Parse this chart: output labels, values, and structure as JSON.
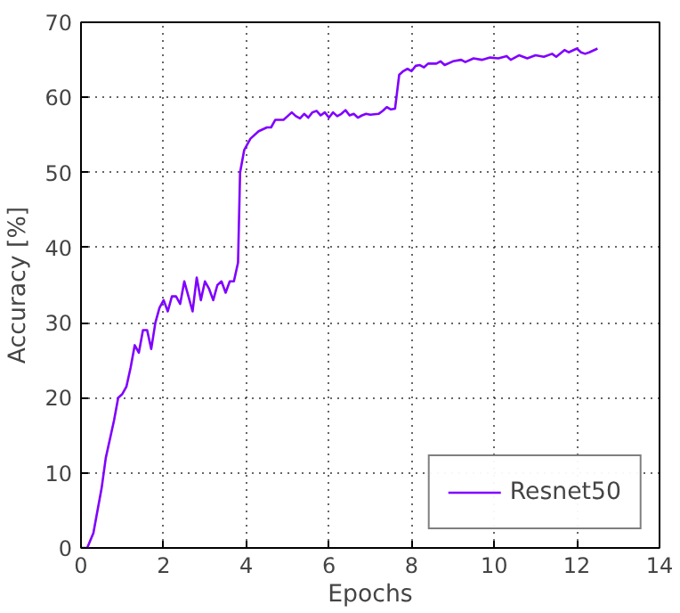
{
  "chart_data": {
    "type": "line",
    "xlabel": "Epochs",
    "ylabel": "Accuracy [%]",
    "xlim": [
      0,
      14
    ],
    "ylim": [
      0,
      70
    ],
    "xticks": [
      0,
      2,
      4,
      6,
      8,
      10,
      12,
      14
    ],
    "yticks": [
      0,
      10,
      20,
      30,
      40,
      50,
      60,
      70
    ],
    "grid": true,
    "legend": "bottom right",
    "line_style": "solid",
    "series": [
      {
        "name": "Resnet50",
        "color": "#8000ff",
        "x": [
          0,
          0.15,
          0.3,
          0.5,
          0.6,
          0.8,
          0.9,
          1.0,
          1.1,
          1.2,
          1.3,
          1.4,
          1.5,
          1.6,
          1.7,
          1.8,
          1.9,
          2.0,
          2.1,
          2.2,
          2.3,
          2.4,
          2.5,
          2.6,
          2.7,
          2.8,
          2.9,
          3.0,
          3.1,
          3.2,
          3.3,
          3.4,
          3.5,
          3.6,
          3.7,
          3.8,
          3.85,
          3.95,
          4.1,
          4.3,
          4.5,
          4.6,
          4.7,
          4.9,
          5.0,
          5.1,
          5.2,
          5.3,
          5.4,
          5.5,
          5.6,
          5.7,
          5.8,
          5.9,
          6.0,
          6.1,
          6.2,
          6.3,
          6.4,
          6.5,
          6.6,
          6.7,
          6.8,
          6.9,
          7.0,
          7.2,
          7.3,
          7.4,
          7.5,
          7.6,
          7.7,
          7.8,
          7.9,
          8.0,
          8.1,
          8.2,
          8.3,
          8.4,
          8.6,
          8.7,
          8.8,
          9.0,
          9.2,
          9.3,
          9.5,
          9.7,
          9.9,
          10.1,
          10.3,
          10.4,
          10.6,
          10.8,
          11.0,
          11.2,
          11.4,
          11.5,
          11.7,
          11.8,
          12.0,
          12.1,
          12.2,
          12.3,
          12.5
        ],
        "values": [
          0,
          0,
          2,
          8,
          12,
          17,
          20,
          20.5,
          21.5,
          24,
          27,
          26,
          29,
          29,
          26.5,
          30,
          32,
          33,
          31.5,
          33.5,
          33.5,
          32.5,
          35.5,
          33.5,
          31.5,
          36,
          33,
          35.5,
          34.5,
          33,
          35,
          35.5,
          34,
          35.5,
          35.5,
          38,
          50,
          53,
          54.5,
          55.5,
          56,
          56,
          57,
          57,
          57.5,
          58,
          57.5,
          57.2,
          57.8,
          57.3,
          58,
          58.2,
          57.6,
          58,
          57.3,
          58,
          57.5,
          57.8,
          58.3,
          57.6,
          57.8,
          57.3,
          57.6,
          57.8,
          57.7,
          57.8,
          58.2,
          58.7,
          58.4,
          58.5,
          63,
          63.5,
          63.8,
          63.5,
          64.2,
          64.3,
          64,
          64.5,
          64.5,
          64.8,
          64.3,
          64.8,
          65,
          64.7,
          65.2,
          65,
          65.3,
          65.2,
          65.5,
          65,
          65.6,
          65.2,
          65.6,
          65.4,
          65.8,
          65.4,
          66.3,
          66,
          66.5,
          66,
          65.8,
          66,
          66.5
        ]
      }
    ]
  }
}
